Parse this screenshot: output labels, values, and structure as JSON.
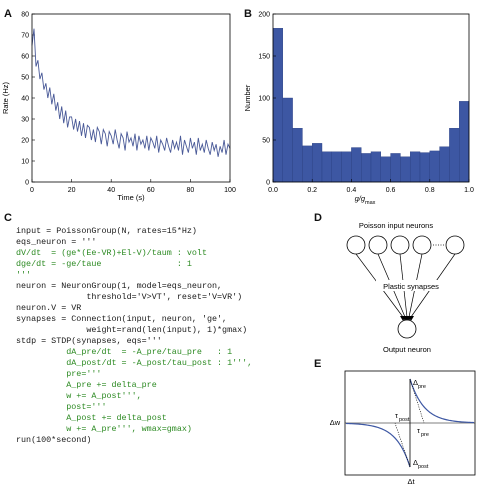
{
  "panels": {
    "a": {
      "letter": "A",
      "chart_data": {
        "type": "line",
        "xlabel": "Time (s)",
        "ylabel": "Rate (Hz)",
        "xlim": [
          0,
          100
        ],
        "ylim": [
          0,
          80
        ],
        "x_ticks": [
          "0",
          "20",
          "40",
          "60",
          "80",
          "100"
        ],
        "y_ticks": [
          "0",
          "10",
          "20",
          "30",
          "40",
          "50",
          "60",
          "70",
          "80"
        ],
        "color": "#4a5a98",
        "x": [
          0,
          1,
          2,
          3,
          4,
          5,
          6,
          7,
          8,
          9,
          10,
          11,
          12,
          13,
          14,
          15,
          16,
          17,
          18,
          19,
          20,
          21,
          22,
          23,
          24,
          25,
          26,
          27,
          28,
          29,
          30,
          31,
          32,
          33,
          34,
          35,
          36,
          37,
          38,
          39,
          40,
          41,
          42,
          43,
          44,
          45,
          46,
          47,
          48,
          49,
          50,
          51,
          52,
          53,
          54,
          55,
          56,
          57,
          58,
          59,
          60,
          61,
          62,
          63,
          64,
          65,
          66,
          67,
          68,
          69,
          70,
          71,
          72,
          73,
          74,
          75,
          76,
          77,
          78,
          79,
          80,
          81,
          82,
          83,
          84,
          85,
          86,
          87,
          88,
          89,
          90,
          91,
          92,
          93,
          94,
          95,
          96,
          97,
          98,
          99,
          100
        ],
        "y": [
          65,
          73,
          55,
          58,
          49,
          52,
          44,
          47,
          40,
          45,
          37,
          42,
          34,
          38,
          30,
          36,
          28,
          34,
          26,
          31,
          31,
          25,
          30,
          24,
          29,
          22,
          28,
          21,
          27,
          26,
          20,
          25,
          19,
          26,
          24,
          18,
          25,
          23,
          17,
          24,
          22,
          18,
          25,
          20,
          16,
          23,
          21,
          15,
          24,
          19,
          21,
          17,
          23,
          15,
          22,
          18,
          20,
          16,
          22,
          15,
          21,
          19,
          16,
          22,
          14,
          20,
          18,
          15,
          21,
          17,
          14,
          20,
          16,
          19,
          15,
          22,
          13,
          20,
          17,
          14,
          21,
          16,
          19,
          13,
          21,
          15,
          18,
          14,
          20,
          16,
          13,
          19,
          15,
          18,
          12,
          17,
          14,
          20,
          13,
          18,
          16
        ]
      }
    },
    "b": {
      "letter": "B",
      "chart_data": {
        "type": "bar",
        "xlabel_main": "g/g",
        "xlabel_sub": "max",
        "ylabel": "Number",
        "xlim": [
          0,
          1
        ],
        "ylim": [
          0,
          200
        ],
        "x_ticks": [
          "0.0",
          "0.2",
          "0.4",
          "0.6",
          "0.8",
          "1.0"
        ],
        "y_ticks": [
          "0",
          "50",
          "100",
          "150",
          "200"
        ],
        "color": "#3d57a3",
        "bin_width": 0.05,
        "bin_starts": [
          0.0,
          0.05,
          0.1,
          0.15,
          0.2,
          0.25,
          0.3,
          0.35,
          0.4,
          0.45,
          0.5,
          0.55,
          0.6,
          0.65,
          0.7,
          0.75,
          0.8,
          0.85,
          0.9,
          0.95
        ],
        "values": [
          183,
          100,
          64,
          43,
          46,
          36,
          36,
          36,
          41,
          34,
          36,
          30,
          34,
          30,
          36,
          35,
          37,
          42,
          64,
          96
        ]
      }
    },
    "c": {
      "letter": "C",
      "code_lines": [
        {
          "text": "input = PoissonGroup(N, rates=15*Hz)",
          "style": "dark"
        },
        {
          "text": "eqs_neuron = '''",
          "style": "dark"
        },
        {
          "text": "dV/dt  = (ge*(Ee-VR)+El-V)/taum : volt",
          "style": "green"
        },
        {
          "text": "dge/dt = -ge/taue               : 1",
          "style": "green"
        },
        {
          "text": "'''",
          "style": "green"
        },
        {
          "text": "neuron = NeuronGroup(1, model=eqs_neuron,",
          "style": "dark"
        },
        {
          "text": "              threshold='V>VT', reset='V=VR')",
          "style": "dark"
        },
        {
          "text": "neuron.V = VR",
          "style": "dark"
        },
        {
          "text": "synapses = Connection(input, neuron, 'ge',",
          "style": "dark"
        },
        {
          "text": "              weight=rand(len(input), 1)*gmax)",
          "style": "dark"
        },
        {
          "text": "stdp = STDP(synapses, eqs='''",
          "style": "dark"
        },
        {
          "text": "          dA_pre/dt  = -A_pre/tau_pre   : 1",
          "style": "green"
        },
        {
          "text": "          dA_post/dt = -A_post/tau_post : 1''',",
          "style": "green"
        },
        {
          "text": "          pre='''",
          "style": "green"
        },
        {
          "text": "          A_pre += delta_pre",
          "style": "green"
        },
        {
          "text": "          w += A_post''',",
          "style": "green"
        },
        {
          "text": "          post='''",
          "style": "green"
        },
        {
          "text": "          A_post += delta_post",
          "style": "green"
        },
        {
          "text": "          w += A_pre''', wmax=gmax)",
          "style": "green"
        },
        {
          "text": "run(100*second)",
          "style": "dark"
        }
      ]
    },
    "d": {
      "letter": "D",
      "poisson_label": "Poisson input neurons",
      "plastic_label": "Plastic synapses",
      "output_label": "Output neuron"
    },
    "e": {
      "letter": "E",
      "x_axis_label": "Δt",
      "y_axis_label": "Δw",
      "delta_pre_main": "Δ",
      "delta_pre_sub": "pre",
      "delta_post_main": "Δ",
      "delta_post_sub": "post",
      "tau_post_main": "τ",
      "tau_post_sub": "post",
      "tau_pre_main": "τ",
      "tau_pre_sub": "pre",
      "curve_color": "#3d57a3"
    }
  }
}
